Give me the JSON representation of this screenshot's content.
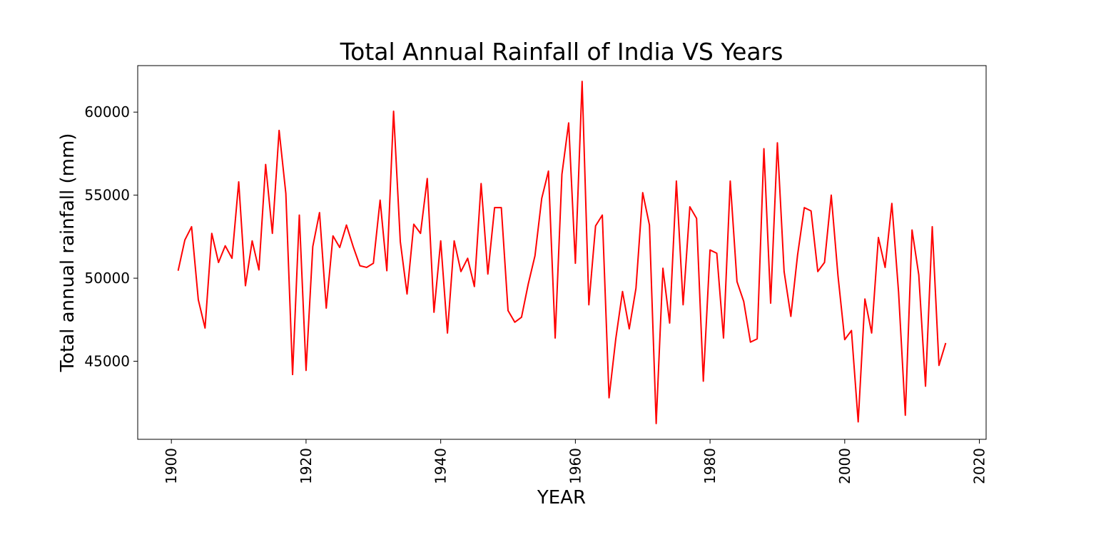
{
  "chart_data": {
    "type": "line",
    "title": "Total Annual Rainfall of India VS Years",
    "xlabel": "YEAR",
    "ylabel": "Total annual rainfall (mm)",
    "xlim": [
      1895,
      2021
    ],
    "ylim": [
      40300,
      62800
    ],
    "xticks": [
      1900,
      1920,
      1940,
      1960,
      1980,
      2000,
      2020
    ],
    "yticks": [
      45000,
      50000,
      55000,
      60000
    ],
    "grid": false,
    "line_color": "#ff0000",
    "series": [
      {
        "x": [
          1901,
          1902,
          1903,
          1904,
          1905,
          1906,
          1907,
          1908,
          1909,
          1910,
          1911,
          1912,
          1913,
          1914,
          1915,
          1916,
          1917,
          1918,
          1919,
          1920,
          1921,
          1922,
          1923,
          1924,
          1925,
          1926,
          1927,
          1928,
          1929,
          1930,
          1931,
          1932,
          1933,
          1934,
          1935,
          1936,
          1937,
          1938,
          1939,
          1940,
          1941,
          1942,
          1943,
          1944,
          1945,
          1946,
          1947,
          1948,
          1949,
          1950,
          1951,
          1952,
          1953,
          1954,
          1955,
          1956,
          1957,
          1958,
          1959,
          1960,
          1961,
          1962,
          1963,
          1964,
          1965,
          1966,
          1967,
          1968,
          1969,
          1970,
          1971,
          1972,
          1973,
          1974,
          1975,
          1976,
          1977,
          1978,
          1979,
          1980,
          1981,
          1982,
          1983,
          1984,
          1985,
          1986,
          1987,
          1988,
          1989,
          1990,
          1991,
          1992,
          1993,
          1994,
          1995,
          1996,
          1997,
          1998,
          1999,
          2000,
          2001,
          2002,
          2003,
          2004,
          2005,
          2006,
          2007,
          2008,
          2009,
          2010,
          2011,
          2012,
          2013,
          2014,
          2015
        ],
        "values": [
          50450,
          52300,
          53100,
          48700,
          47000,
          52700,
          50950,
          51950,
          51200,
          55800,
          49550,
          52250,
          50500,
          56850,
          52700,
          58900,
          55100,
          44200,
          53800,
          44450,
          51900,
          53950,
          48200,
          52550,
          51850,
          53200,
          51900,
          50750,
          50650,
          50900,
          54700,
          50450,
          60050,
          52200,
          49050,
          53250,
          52700,
          56000,
          47950,
          52250,
          46700,
          52250,
          50400,
          51200,
          49500,
          55700,
          50250,
          54250,
          54250,
          48050,
          47350,
          47650,
          49650,
          51350,
          54800,
          56450,
          46400,
          56250,
          59350,
          50900,
          61850,
          48400,
          53150,
          53800,
          42800,
          46350,
          49200,
          46950,
          49400,
          55150,
          53200,
          41250,
          50600,
          47300,
          55850,
          48400,
          54300,
          53600,
          43800,
          51700,
          51500,
          46400,
          55850,
          49800,
          48600,
          46150,
          46350,
          57800,
          48500,
          58150,
          50400,
          47700,
          51400,
          54250,
          54050,
          50400,
          50950,
          55000,
          50150,
          46300,
          46850,
          41350,
          48750,
          46700,
          52450,
          50650,
          54500,
          49150,
          41750,
          52900,
          50200,
          43500,
          53100,
          44750,
          46100
        ]
      }
    ]
  }
}
